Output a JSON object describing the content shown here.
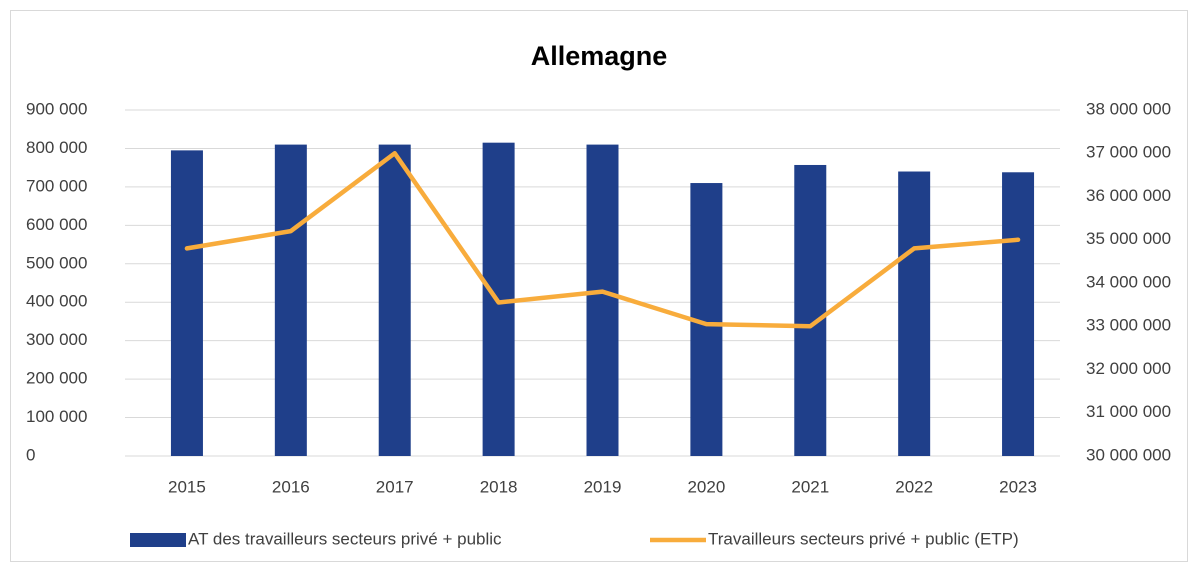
{
  "chart_data": {
    "type": "bar_line",
    "title": "Allemagne",
    "categories": [
      "2015",
      "2016",
      "2017",
      "2018",
      "2019",
      "2020",
      "2021",
      "2022",
      "2023"
    ],
    "series": [
      {
        "name": "AT des travailleurs secteurs privé + public",
        "type": "bar",
        "color": "#1f3f8a",
        "values": [
          795000,
          810000,
          810000,
          815000,
          810000,
          710000,
          757000,
          740000,
          738000
        ]
      },
      {
        "name": "Travailleurs secteurs privé + public (ETP)",
        "type": "line",
        "axis": "y2",
        "color": "#f8ac3c",
        "values": [
          34800000,
          35200000,
          37000000,
          33550000,
          33800000,
          33050000,
          33000000,
          34800000,
          35000000
        ]
      }
    ],
    "ylim": [
      0,
      900000
    ],
    "yticks": [
      0,
      {
        "value": 100000,
        "label": "100 000"
      },
      {
        "value": 200000,
        "label": "200 000"
      },
      {
        "value": 300000,
        "label": "300 000"
      },
      {
        "value": 400000,
        "label": "400 000"
      },
      {
        "value": 500000,
        "label": "500 000"
      },
      {
        "value": 600000,
        "label": "600 000"
      },
      {
        "value": 700000,
        "label": "700 000"
      },
      {
        "value": 800000,
        "label": "800 000"
      },
      {
        "value": 900000,
        "label": "900 000"
      }
    ],
    "y2lim": [
      30000000,
      38000000
    ],
    "y2ticks": [
      {
        "value": 30000000,
        "label": "30 000 000"
      },
      {
        "value": 31000000,
        "label": "31 000 000"
      },
      {
        "value": 32000000,
        "label": "32 000 000"
      },
      {
        "value": 33000000,
        "label": "33 000 000"
      },
      {
        "value": 34000000,
        "label": "34 000 000"
      },
      {
        "value": 35000000,
        "label": "35 000 000"
      },
      {
        "value": 36000000,
        "label": "36 000 000"
      },
      {
        "value": 37000000,
        "label": "37 000 000"
      },
      {
        "value": 38000000,
        "label": "38 000 000"
      }
    ],
    "grid": true,
    "legend": "bottom"
  }
}
